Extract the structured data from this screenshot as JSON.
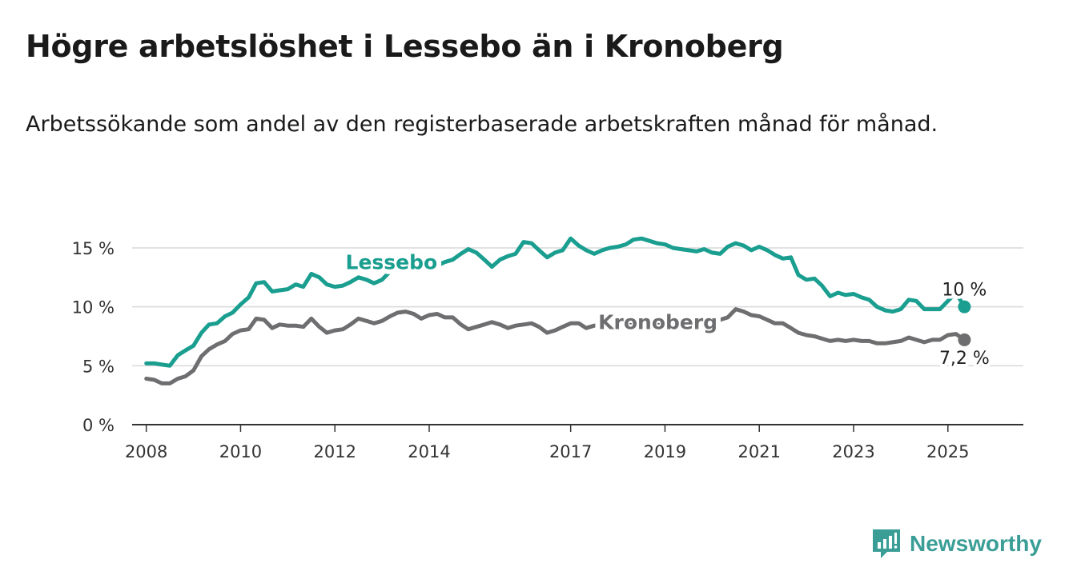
{
  "title": "Högre arbetslöshet i Lessebo än i Kronoberg",
  "subtitle": "Arbetssökande som andel av den registerbaserade arbetskraften månad för månad.",
  "brand": {
    "name": "Newsworthy",
    "icon": "newsworthy-logo-icon",
    "color": "#3a9e96"
  },
  "chart_data": {
    "type": "line",
    "x_unit": "year (decimal, monthly data)",
    "ylim": [
      0,
      15
    ],
    "yticks": [
      {
        "value": 0,
        "label": "0 %"
      },
      {
        "value": 5,
        "label": "5 %"
      },
      {
        "value": 10,
        "label": "10 %"
      },
      {
        "value": 15,
        "label": "15 %"
      }
    ],
    "xlim": [
      2007.7,
      2026.6
    ],
    "xticks": [
      {
        "value": 2008,
        "label": "2008"
      },
      {
        "value": 2010,
        "label": "2010"
      },
      {
        "value": 2012,
        "label": "2012"
      },
      {
        "value": 2014,
        "label": "2014"
      },
      {
        "value": 2017,
        "label": "2017"
      },
      {
        "value": 2019,
        "label": "2019"
      },
      {
        "value": 2021,
        "label": "2021"
      },
      {
        "value": 2023,
        "label": "2023"
      },
      {
        "value": 2025,
        "label": "2025"
      }
    ],
    "grid": true,
    "series": [
      {
        "name": "Lessebo",
        "color": "#1a9e8f",
        "end_label": "10 %",
        "label_anchor": [
          2013.2,
          13.2
        ],
        "end_label_offset": "above",
        "points": [
          [
            2008.0,
            5.2
          ],
          [
            2008.17,
            5.2
          ],
          [
            2008.33,
            5.1
          ],
          [
            2008.5,
            5.0
          ],
          [
            2008.67,
            5.9
          ],
          [
            2008.83,
            6.3
          ],
          [
            2009.0,
            6.7
          ],
          [
            2009.17,
            7.8
          ],
          [
            2009.33,
            8.5
          ],
          [
            2009.5,
            8.6
          ],
          [
            2009.67,
            9.2
          ],
          [
            2009.83,
            9.5
          ],
          [
            2010.0,
            10.2
          ],
          [
            2010.17,
            10.8
          ],
          [
            2010.33,
            12.0
          ],
          [
            2010.5,
            12.1
          ],
          [
            2010.67,
            11.3
          ],
          [
            2010.83,
            11.4
          ],
          [
            2011.0,
            11.5
          ],
          [
            2011.17,
            11.9
          ],
          [
            2011.33,
            11.7
          ],
          [
            2011.5,
            12.8
          ],
          [
            2011.67,
            12.5
          ],
          [
            2011.83,
            11.9
          ],
          [
            2012.0,
            11.7
          ],
          [
            2012.17,
            11.8
          ],
          [
            2012.33,
            12.1
          ],
          [
            2012.5,
            12.5
          ],
          [
            2012.67,
            12.3
          ],
          [
            2012.83,
            12.0
          ],
          [
            2013.0,
            12.3
          ],
          [
            2013.17,
            13.0
          ],
          [
            2013.33,
            13.8
          ],
          [
            2013.5,
            13.6
          ],
          [
            2013.67,
            13.3
          ],
          [
            2013.83,
            13.5
          ],
          [
            2014.0,
            13.3
          ],
          [
            2014.17,
            13.5
          ],
          [
            2014.33,
            13.8
          ],
          [
            2014.5,
            14.0
          ],
          [
            2014.67,
            14.5
          ],
          [
            2014.83,
            14.9
          ],
          [
            2015.0,
            14.6
          ],
          [
            2015.17,
            14.0
          ],
          [
            2015.33,
            13.4
          ],
          [
            2015.5,
            14.0
          ],
          [
            2015.67,
            14.3
          ],
          [
            2015.83,
            14.5
          ],
          [
            2016.0,
            15.5
          ],
          [
            2016.17,
            15.4
          ],
          [
            2016.33,
            14.8
          ],
          [
            2016.5,
            14.2
          ],
          [
            2016.67,
            14.6
          ],
          [
            2016.83,
            14.8
          ],
          [
            2017.0,
            15.8
          ],
          [
            2017.17,
            15.2
          ],
          [
            2017.33,
            14.8
          ],
          [
            2017.5,
            14.5
          ],
          [
            2017.67,
            14.8
          ],
          [
            2017.83,
            15.0
          ],
          [
            2018.0,
            15.1
          ],
          [
            2018.17,
            15.3
          ],
          [
            2018.33,
            15.7
          ],
          [
            2018.5,
            15.8
          ],
          [
            2018.67,
            15.6
          ],
          [
            2018.83,
            15.4
          ],
          [
            2019.0,
            15.3
          ],
          [
            2019.17,
            15.0
          ],
          [
            2019.33,
            14.9
          ],
          [
            2019.5,
            14.8
          ],
          [
            2019.67,
            14.7
          ],
          [
            2019.83,
            14.9
          ],
          [
            2020.0,
            14.6
          ],
          [
            2020.17,
            14.5
          ],
          [
            2020.33,
            15.1
          ],
          [
            2020.5,
            15.4
          ],
          [
            2020.67,
            15.2
          ],
          [
            2020.83,
            14.8
          ],
          [
            2021.0,
            15.1
          ],
          [
            2021.17,
            14.8
          ],
          [
            2021.33,
            14.4
          ],
          [
            2021.5,
            14.1
          ],
          [
            2021.67,
            14.2
          ],
          [
            2021.83,
            12.7
          ],
          [
            2022.0,
            12.3
          ],
          [
            2022.17,
            12.4
          ],
          [
            2022.33,
            11.8
          ],
          [
            2022.5,
            10.9
          ],
          [
            2022.67,
            11.2
          ],
          [
            2022.83,
            11.0
          ],
          [
            2023.0,
            11.1
          ],
          [
            2023.17,
            10.8
          ],
          [
            2023.33,
            10.6
          ],
          [
            2023.5,
            10.0
          ],
          [
            2023.67,
            9.7
          ],
          [
            2023.83,
            9.6
          ],
          [
            2024.0,
            9.8
          ],
          [
            2024.17,
            10.6
          ],
          [
            2024.33,
            10.5
          ],
          [
            2024.5,
            9.8
          ],
          [
            2024.67,
            9.8
          ],
          [
            2024.83,
            9.8
          ],
          [
            2025.0,
            10.5
          ],
          [
            2025.17,
            11.2
          ],
          [
            2025.35,
            10.0
          ]
        ]
      },
      {
        "name": "Kronoberg",
        "color": "#6e6e70",
        "end_label": "7,2 %",
        "label_anchor": [
          2018.85,
          8.1
        ],
        "end_label_offset": "below",
        "points": [
          [
            2008.0,
            3.9
          ],
          [
            2008.17,
            3.8
          ],
          [
            2008.33,
            3.5
          ],
          [
            2008.5,
            3.5
          ],
          [
            2008.67,
            3.9
          ],
          [
            2008.83,
            4.1
          ],
          [
            2009.0,
            4.6
          ],
          [
            2009.17,
            5.8
          ],
          [
            2009.33,
            6.4
          ],
          [
            2009.5,
            6.8
          ],
          [
            2009.67,
            7.1
          ],
          [
            2009.83,
            7.7
          ],
          [
            2010.0,
            8.0
          ],
          [
            2010.17,
            8.1
          ],
          [
            2010.33,
            9.0
          ],
          [
            2010.5,
            8.9
          ],
          [
            2010.67,
            8.2
          ],
          [
            2010.83,
            8.5
          ],
          [
            2011.0,
            8.4
          ],
          [
            2011.17,
            8.4
          ],
          [
            2011.33,
            8.3
          ],
          [
            2011.5,
            9.0
          ],
          [
            2011.67,
            8.3
          ],
          [
            2011.83,
            7.8
          ],
          [
            2012.0,
            8.0
          ],
          [
            2012.17,
            8.1
          ],
          [
            2012.33,
            8.5
          ],
          [
            2012.5,
            9.0
          ],
          [
            2012.67,
            8.8
          ],
          [
            2012.83,
            8.6
          ],
          [
            2013.0,
            8.8
          ],
          [
            2013.17,
            9.2
          ],
          [
            2013.33,
            9.5
          ],
          [
            2013.5,
            9.6
          ],
          [
            2013.67,
            9.4
          ],
          [
            2013.83,
            9.0
          ],
          [
            2014.0,
            9.3
          ],
          [
            2014.17,
            9.4
          ],
          [
            2014.33,
            9.1
          ],
          [
            2014.5,
            9.1
          ],
          [
            2014.67,
            8.5
          ],
          [
            2014.83,
            8.1
          ],
          [
            2015.0,
            8.3
          ],
          [
            2015.17,
            8.5
          ],
          [
            2015.33,
            8.7
          ],
          [
            2015.5,
            8.5
          ],
          [
            2015.67,
            8.2
          ],
          [
            2015.83,
            8.4
          ],
          [
            2016.0,
            8.5
          ],
          [
            2016.17,
            8.6
          ],
          [
            2016.33,
            8.3
          ],
          [
            2016.5,
            7.8
          ],
          [
            2016.67,
            8.0
          ],
          [
            2016.83,
            8.3
          ],
          [
            2017.0,
            8.6
          ],
          [
            2017.17,
            8.6
          ],
          [
            2017.33,
            8.2
          ],
          [
            2017.5,
            8.4
          ],
          [
            2017.67,
            8.5
          ],
          [
            2017.83,
            8.5
          ],
          [
            2018.0,
            8.5
          ],
          [
            2018.17,
            8.6
          ],
          [
            2018.33,
            8.6
          ],
          [
            2018.5,
            8.5
          ],
          [
            2018.67,
            8.6
          ],
          [
            2018.83,
            8.6
          ],
          [
            2019.0,
            8.7
          ],
          [
            2019.17,
            8.7
          ],
          [
            2019.33,
            8.6
          ],
          [
            2019.5,
            8.7
          ],
          [
            2019.67,
            8.8
          ],
          [
            2019.83,
            8.8
          ],
          [
            2020.0,
            8.9
          ],
          [
            2020.17,
            8.9
          ],
          [
            2020.33,
            9.1
          ],
          [
            2020.5,
            9.8
          ],
          [
            2020.67,
            9.6
          ],
          [
            2020.83,
            9.3
          ],
          [
            2021.0,
            9.2
          ],
          [
            2021.17,
            8.9
          ],
          [
            2021.33,
            8.6
          ],
          [
            2021.5,
            8.6
          ],
          [
            2021.67,
            8.2
          ],
          [
            2021.83,
            7.8
          ],
          [
            2022.0,
            7.6
          ],
          [
            2022.17,
            7.5
          ],
          [
            2022.33,
            7.3
          ],
          [
            2022.5,
            7.1
          ],
          [
            2022.67,
            7.2
          ],
          [
            2022.83,
            7.1
          ],
          [
            2023.0,
            7.2
          ],
          [
            2023.17,
            7.1
          ],
          [
            2023.33,
            7.1
          ],
          [
            2023.5,
            6.9
          ],
          [
            2023.67,
            6.9
          ],
          [
            2023.83,
            7.0
          ],
          [
            2024.0,
            7.1
          ],
          [
            2024.17,
            7.4
          ],
          [
            2024.33,
            7.2
          ],
          [
            2024.5,
            7.0
          ],
          [
            2024.67,
            7.2
          ],
          [
            2024.83,
            7.2
          ],
          [
            2025.0,
            7.6
          ],
          [
            2025.17,
            7.7
          ],
          [
            2025.35,
            7.2
          ]
        ]
      }
    ]
  }
}
